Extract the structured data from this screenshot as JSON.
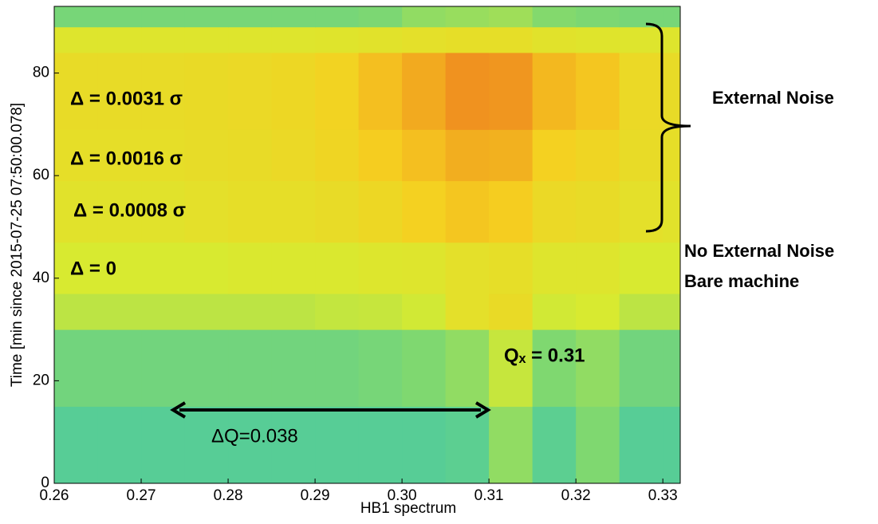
{
  "chart_data": {
    "type": "heatmap",
    "xlabel": "HB1 spectrum",
    "ylabel": "Time [min since 2015-07-25 07:50:00.078]",
    "xlim": [
      0.26,
      0.332
    ],
    "ylim": [
      0,
      93
    ],
    "xticks": [
      0.26,
      0.27,
      0.28,
      0.29,
      {
        "value": 0.3,
        "label": "0.30"
      },
      0.31,
      0.32,
      0.33
    ],
    "yticks": [
      0,
      20,
      40,
      60,
      80
    ],
    "colorscale": [
      "#3cc6b0",
      "#7fd870",
      "#d8ea30",
      "#f5d020",
      "#ee7a1e"
    ],
    "x_edges": [
      0.26,
      0.265,
      0.27,
      0.275,
      0.28,
      0.285,
      0.29,
      0.295,
      0.3,
      0.305,
      0.31,
      0.315,
      0.32,
      0.325,
      0.33,
      0.332
    ],
    "y_edges": [
      0,
      15,
      30,
      37,
      47,
      59,
      69,
      84,
      89,
      93
    ],
    "values": [
      [
        0.1,
        0.1,
        0.1,
        0.1,
        0.1,
        0.1,
        0.1,
        0.1,
        0.1,
        0.12,
        0.3,
        0.12,
        0.25,
        0.1,
        0.1
      ],
      [
        0.2,
        0.2,
        0.2,
        0.2,
        0.2,
        0.2,
        0.2,
        0.22,
        0.25,
        0.3,
        0.45,
        0.25,
        0.3,
        0.2,
        0.2
      ],
      [
        0.42,
        0.42,
        0.42,
        0.42,
        0.42,
        0.42,
        0.44,
        0.45,
        0.48,
        0.6,
        0.65,
        0.48,
        0.5,
        0.42,
        0.42
      ],
      [
        0.5,
        0.5,
        0.5,
        0.5,
        0.52,
        0.52,
        0.52,
        0.54,
        0.55,
        0.6,
        0.62,
        0.55,
        0.55,
        0.5,
        0.5
      ],
      [
        0.58,
        0.58,
        0.58,
        0.6,
        0.62,
        0.62,
        0.64,
        0.68,
        0.74,
        0.78,
        0.76,
        0.66,
        0.64,
        0.6,
        0.58
      ],
      [
        0.62,
        0.62,
        0.62,
        0.63,
        0.64,
        0.66,
        0.7,
        0.76,
        0.8,
        0.85,
        0.84,
        0.74,
        0.7,
        0.64,
        0.62
      ],
      [
        0.64,
        0.64,
        0.64,
        0.65,
        0.66,
        0.68,
        0.72,
        0.8,
        0.86,
        0.93,
        0.92,
        0.82,
        0.78,
        0.66,
        0.64
      ],
      [
        0.55,
        0.55,
        0.55,
        0.55,
        0.55,
        0.55,
        0.56,
        0.58,
        0.6,
        0.62,
        0.62,
        0.58,
        0.56,
        0.55,
        0.55
      ],
      [
        0.22,
        0.22,
        0.22,
        0.22,
        0.22,
        0.22,
        0.22,
        0.24,
        0.3,
        0.32,
        0.34,
        0.26,
        0.24,
        0.22,
        0.22
      ]
    ],
    "annotations": [
      "Δ = 0.0031 σ",
      "Δ = 0.0016 σ",
      "Δ = 0.0008 σ",
      "Δ = 0",
      "Qₓ = 0.31",
      "ΔQ=0.038",
      "External Noise",
      "No External Noise",
      "Bare machine"
    ]
  }
}
